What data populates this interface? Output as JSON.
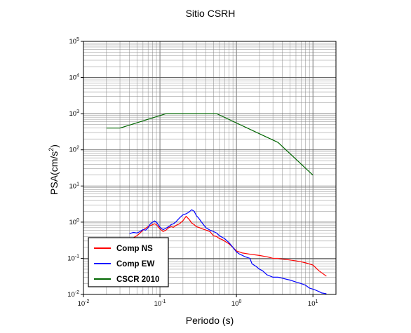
{
  "chart_data": {
    "type": "line",
    "title": "Sitio CSRH",
    "xlabel": "Periodo (s)",
    "ylabel": {
      "base": "PSA(cm/s",
      "exp": "2",
      "tail": ")"
    },
    "x_scale": "log",
    "y_scale": "log",
    "xlim": [
      0.01,
      20
    ],
    "ylim": [
      0.01,
      100000
    ],
    "grid": true,
    "legend_position": "bottom-left",
    "x_ticks": [
      {
        "base": "10",
        "exp": "-2",
        "value": 0.01
      },
      {
        "base": "10",
        "exp": "-1",
        "value": 0.1
      },
      {
        "base": "10",
        "exp": "0",
        "value": 1
      },
      {
        "base": "10",
        "exp": "1",
        "value": 10
      }
    ],
    "y_ticks": [
      {
        "base": "10",
        "exp": "-2",
        "value": 0.01
      },
      {
        "base": "10",
        "exp": "-1",
        "value": 0.1
      },
      {
        "base": "10",
        "exp": "0",
        "value": 1
      },
      {
        "base": "10",
        "exp": "1",
        "value": 10
      },
      {
        "base": "10",
        "exp": "2",
        "value": 100
      },
      {
        "base": "10",
        "exp": "3",
        "value": 1000
      },
      {
        "base": "10",
        "exp": "4",
        "value": 10000
      },
      {
        "base": "10",
        "exp": "5",
        "value": 100000
      }
    ],
    "series": [
      {
        "name": "Comp NS",
        "color": "#ff0000",
        "points": [
          [
            0.04,
            0.35
          ],
          [
            0.045,
            0.37
          ],
          [
            0.05,
            0.42
          ],
          [
            0.055,
            0.5
          ],
          [
            0.06,
            0.6
          ],
          [
            0.065,
            0.68
          ],
          [
            0.07,
            0.75
          ],
          [
            0.075,
            0.8
          ],
          [
            0.08,
            0.85
          ],
          [
            0.085,
            0.9
          ],
          [
            0.09,
            0.85
          ],
          [
            0.1,
            0.65
          ],
          [
            0.11,
            0.55
          ],
          [
            0.12,
            0.6
          ],
          [
            0.13,
            0.7
          ],
          [
            0.14,
            0.75
          ],
          [
            0.15,
            0.72
          ],
          [
            0.16,
            0.8
          ],
          [
            0.18,
            0.9
          ],
          [
            0.2,
            1.1
          ],
          [
            0.22,
            1.45
          ],
          [
            0.24,
            1.2
          ],
          [
            0.26,
            0.95
          ],
          [
            0.28,
            0.85
          ],
          [
            0.3,
            0.75
          ],
          [
            0.33,
            0.7
          ],
          [
            0.36,
            0.65
          ],
          [
            0.4,
            0.6
          ],
          [
            0.45,
            0.55
          ],
          [
            0.5,
            0.42
          ],
          [
            0.55,
            0.4
          ],
          [
            0.6,
            0.35
          ],
          [
            0.65,
            0.33
          ],
          [
            0.7,
            0.3
          ],
          [
            0.8,
            0.25
          ],
          [
            0.9,
            0.2
          ],
          [
            1.0,
            0.16
          ],
          [
            1.2,
            0.14
          ],
          [
            1.5,
            0.13
          ],
          [
            2.0,
            0.12
          ],
          [
            2.5,
            0.11
          ],
          [
            3.0,
            0.1
          ],
          [
            3.5,
            0.1
          ],
          [
            4.0,
            0.095
          ],
          [
            5.0,
            0.09
          ],
          [
            6.0,
            0.085
          ],
          [
            7.0,
            0.08
          ],
          [
            8.0,
            0.075
          ],
          [
            10.0,
            0.065
          ],
          [
            12.0,
            0.045
          ],
          [
            15.0,
            0.032
          ]
        ]
      },
      {
        "name": "Comp EW",
        "color": "#0000ff",
        "points": [
          [
            0.04,
            0.48
          ],
          [
            0.045,
            0.52
          ],
          [
            0.05,
            0.5
          ],
          [
            0.055,
            0.55
          ],
          [
            0.06,
            0.62
          ],
          [
            0.065,
            0.6
          ],
          [
            0.07,
            0.7
          ],
          [
            0.075,
            0.9
          ],
          [
            0.08,
            1.0
          ],
          [
            0.085,
            1.08
          ],
          [
            0.09,
            1.0
          ],
          [
            0.1,
            0.72
          ],
          [
            0.11,
            0.62
          ],
          [
            0.12,
            0.68
          ],
          [
            0.13,
            0.75
          ],
          [
            0.14,
            0.85
          ],
          [
            0.15,
            0.9
          ],
          [
            0.16,
            1.0
          ],
          [
            0.18,
            1.3
          ],
          [
            0.2,
            1.6
          ],
          [
            0.22,
            1.7
          ],
          [
            0.24,
            1.9
          ],
          [
            0.26,
            2.2
          ],
          [
            0.28,
            2.0
          ],
          [
            0.3,
            1.5
          ],
          [
            0.32,
            1.3
          ],
          [
            0.35,
            1.0
          ],
          [
            0.38,
            0.8
          ],
          [
            0.4,
            0.7
          ],
          [
            0.45,
            0.6
          ],
          [
            0.5,
            0.55
          ],
          [
            0.55,
            0.5
          ],
          [
            0.6,
            0.42
          ],
          [
            0.7,
            0.35
          ],
          [
            0.8,
            0.27
          ],
          [
            0.9,
            0.2
          ],
          [
            1.0,
            0.15
          ],
          [
            1.1,
            0.13
          ],
          [
            1.2,
            0.12
          ],
          [
            1.3,
            0.11
          ],
          [
            1.5,
            0.1
          ],
          [
            1.6,
            0.07
          ],
          [
            1.8,
            0.06
          ],
          [
            2.0,
            0.05
          ],
          [
            2.2,
            0.045
          ],
          [
            2.5,
            0.035
          ],
          [
            3.0,
            0.03
          ],
          [
            3.5,
            0.03
          ],
          [
            4.0,
            0.028
          ],
          [
            5.0,
            0.025
          ],
          [
            6.0,
            0.022
          ],
          [
            7.0,
            0.02
          ],
          [
            8.0,
            0.018
          ],
          [
            9.0,
            0.015
          ],
          [
            10.0,
            0.014
          ],
          [
            11.0,
            0.013
          ],
          [
            12.0,
            0.012
          ],
          [
            13.0,
            0.011
          ],
          [
            15.0,
            0.0105
          ]
        ]
      },
      {
        "name": "CSCR 2010",
        "color": "#006600",
        "points": [
          [
            0.02,
            400
          ],
          [
            0.03,
            400
          ],
          [
            0.12,
            1000
          ],
          [
            0.55,
            1000
          ],
          [
            3.5,
            160
          ],
          [
            10,
            20
          ]
        ]
      }
    ]
  }
}
